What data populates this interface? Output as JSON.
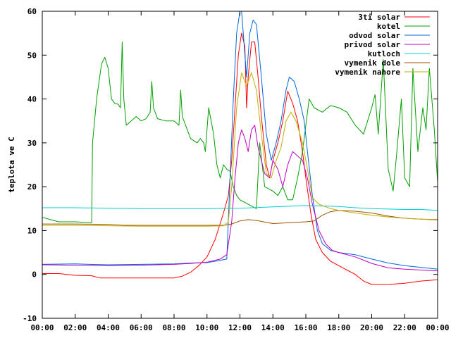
{
  "chart_data": {
    "type": "line",
    "title": "",
    "xlabel": "",
    "ylabel": "teplota ve C",
    "xlim": [
      0,
      24
    ],
    "ylim": [
      -10,
      60
    ],
    "x_ticks": [
      0,
      2,
      4,
      6,
      8,
      10,
      12,
      14,
      16,
      18,
      20,
      22,
      24
    ],
    "x_tick_labels": [
      "00:00",
      "02:00",
      "04:00",
      "06:00",
      "08:00",
      "10:00",
      "12:00",
      "14:00",
      "16:00",
      "18:00",
      "20:00",
      "22:00",
      "00:00"
    ],
    "y_ticks": [
      -10,
      0,
      10,
      20,
      30,
      40,
      50,
      60
    ],
    "y_tick_labels": [
      "-10",
      "0",
      "10",
      "20",
      "30",
      "40",
      "50",
      "60"
    ],
    "grid": false,
    "legend_position": "top-right",
    "series": [
      {
        "name": "3ti solar",
        "color": "#ff0000",
        "points": [
          [
            0,
            0.2
          ],
          [
            1,
            0.2
          ],
          [
            2,
            -0.2
          ],
          [
            3,
            -0.3
          ],
          [
            3.5,
            -0.8
          ],
          [
            5,
            -0.8
          ],
          [
            7,
            -0.8
          ],
          [
            8,
            -0.8
          ],
          [
            8.5,
            -0.4
          ],
          [
            9,
            0.5
          ],
          [
            9.5,
            2
          ],
          [
            10,
            4
          ],
          [
            10.5,
            8
          ],
          [
            11,
            14
          ],
          [
            11.3,
            18
          ],
          [
            11.5,
            26
          ],
          [
            11.7,
            38
          ],
          [
            11.9,
            50
          ],
          [
            12.1,
            55
          ],
          [
            12.3,
            52
          ],
          [
            12.4,
            38
          ],
          [
            12.5,
            45
          ],
          [
            12.7,
            53
          ],
          [
            12.9,
            53
          ],
          [
            13.1,
            45
          ],
          [
            13.3,
            36
          ],
          [
            13.6,
            25
          ],
          [
            13.8,
            22
          ],
          [
            14.0,
            26
          ],
          [
            14.3,
            30
          ],
          [
            14.6,
            35
          ],
          [
            14.9,
            41.8
          ],
          [
            15.2,
            39
          ],
          [
            15.5,
            35
          ],
          [
            15.8,
            28
          ],
          [
            16.0,
            22
          ],
          [
            16.3,
            14
          ],
          [
            16.6,
            8
          ],
          [
            17.0,
            5
          ],
          [
            17.5,
            3
          ],
          [
            18.0,
            2
          ],
          [
            18.5,
            1
          ],
          [
            19.0,
            0
          ],
          [
            19.5,
            -1.5
          ],
          [
            20.0,
            -2.3
          ],
          [
            21,
            -2.3
          ],
          [
            22,
            -2
          ],
          [
            23,
            -1.5
          ],
          [
            24,
            -1.2
          ]
        ]
      },
      {
        "name": "kotel",
        "color": "#00a000",
        "points": [
          [
            0,
            13
          ],
          [
            0.5,
            12.5
          ],
          [
            1,
            12
          ],
          [
            2,
            12
          ],
          [
            3,
            11.8
          ],
          [
            3.05,
            30
          ],
          [
            3.3,
            40
          ],
          [
            3.6,
            48
          ],
          [
            3.8,
            49.5
          ],
          [
            4.0,
            47
          ],
          [
            4.2,
            40
          ],
          [
            4.4,
            39
          ],
          [
            4.6,
            38.8
          ],
          [
            4.75,
            38
          ],
          [
            4.85,
            53
          ],
          [
            4.95,
            40
          ],
          [
            5.1,
            34
          ],
          [
            5.4,
            35
          ],
          [
            5.7,
            36
          ],
          [
            6.0,
            35
          ],
          [
            6.3,
            35.5
          ],
          [
            6.55,
            37
          ],
          [
            6.65,
            44
          ],
          [
            6.75,
            38
          ],
          [
            7.0,
            35.5
          ],
          [
            7.5,
            35
          ],
          [
            8.0,
            35
          ],
          [
            8.3,
            34
          ],
          [
            8.4,
            42
          ],
          [
            8.5,
            36
          ],
          [
            9.0,
            31
          ],
          [
            9.4,
            30
          ],
          [
            9.6,
            31
          ],
          [
            9.8,
            30
          ],
          [
            9.9,
            28
          ],
          [
            10.1,
            38
          ],
          [
            10.4,
            32
          ],
          [
            10.6,
            25
          ],
          [
            10.8,
            22
          ],
          [
            11.0,
            25
          ],
          [
            11.2,
            24
          ],
          [
            11.4,
            23.5
          ],
          [
            11.6,
            20
          ],
          [
            11.8,
            18
          ],
          [
            12.0,
            17
          ],
          [
            12.5,
            16
          ],
          [
            13.0,
            15
          ],
          [
            13.2,
            30
          ],
          [
            13.5,
            20
          ],
          [
            14.0,
            19
          ],
          [
            14.3,
            18
          ],
          [
            14.6,
            20
          ],
          [
            14.9,
            17
          ],
          [
            15.2,
            17
          ],
          [
            15.5,
            22
          ],
          [
            15.8,
            28
          ],
          [
            16.0,
            34
          ],
          [
            16.2,
            40
          ],
          [
            16.5,
            38
          ],
          [
            17.0,
            37
          ],
          [
            17.5,
            38.5
          ],
          [
            18,
            38
          ],
          [
            18.5,
            37
          ],
          [
            19,
            34
          ],
          [
            19.5,
            32
          ],
          [
            20,
            38
          ],
          [
            20.2,
            41
          ],
          [
            20.4,
            32
          ],
          [
            20.7,
            49
          ],
          [
            21.0,
            24
          ],
          [
            21.3,
            19
          ],
          [
            21.5,
            27
          ],
          [
            21.8,
            40
          ],
          [
            22.0,
            22
          ],
          [
            22.3,
            20
          ],
          [
            22.5,
            47
          ],
          [
            22.8,
            28
          ],
          [
            23.1,
            38
          ],
          [
            23.3,
            33
          ],
          [
            23.5,
            47
          ],
          [
            23.8,
            33
          ],
          [
            24,
            21
          ]
        ]
      },
      {
        "name": "odvod solar",
        "color": "#0066dd",
        "points": [
          [
            0,
            2.3
          ],
          [
            2,
            2.4
          ],
          [
            4,
            2.2
          ],
          [
            6,
            2.3
          ],
          [
            8,
            2.4
          ],
          [
            9,
            2.6
          ],
          [
            10,
            2.7
          ],
          [
            10.5,
            3
          ],
          [
            11.2,
            3.5
          ],
          [
            11.4,
            22
          ],
          [
            11.6,
            40
          ],
          [
            11.8,
            55
          ],
          [
            12.0,
            60
          ],
          [
            12.1,
            60
          ],
          [
            12.2,
            55
          ],
          [
            12.4,
            45
          ],
          [
            12.6,
            55
          ],
          [
            12.8,
            58
          ],
          [
            13.0,
            57
          ],
          [
            13.3,
            45
          ],
          [
            13.6,
            32
          ],
          [
            13.9,
            26
          ],
          [
            14.2,
            30
          ],
          [
            14.5,
            35
          ],
          [
            14.8,
            42
          ],
          [
            15.0,
            45
          ],
          [
            15.3,
            44
          ],
          [
            15.6,
            40
          ],
          [
            15.9,
            35
          ],
          [
            16.1,
            28
          ],
          [
            16.4,
            18
          ],
          [
            16.7,
            10
          ],
          [
            17.0,
            7
          ],
          [
            17.5,
            5.5
          ],
          [
            18,
            5
          ],
          [
            19,
            4.5
          ],
          [
            20,
            3.5
          ],
          [
            21,
            2.6
          ],
          [
            22,
            2
          ],
          [
            23,
            1.6
          ],
          [
            24,
            1.2
          ]
        ]
      },
      {
        "name": "privod solar",
        "color": "#c000c0",
        "points": [
          [
            0,
            2.2
          ],
          [
            2,
            2.1
          ],
          [
            4,
            2.0
          ],
          [
            6,
            2.1
          ],
          [
            8,
            2.3
          ],
          [
            9,
            2.5
          ],
          [
            10,
            2.8
          ],
          [
            10.8,
            3.5
          ],
          [
            11.2,
            4.5
          ],
          [
            11.5,
            12
          ],
          [
            11.7,
            22
          ],
          [
            11.9,
            30
          ],
          [
            12.1,
            33
          ],
          [
            12.3,
            31
          ],
          [
            12.5,
            28
          ],
          [
            12.7,
            33
          ],
          [
            12.9,
            34
          ],
          [
            13.1,
            29
          ],
          [
            13.5,
            23
          ],
          [
            13.8,
            22
          ],
          [
            14.0,
            26
          ],
          [
            14.3,
            24
          ],
          [
            14.6,
            20
          ],
          [
            14.9,
            25
          ],
          [
            15.2,
            28
          ],
          [
            15.5,
            27
          ],
          [
            15.8,
            26
          ],
          [
            16.1,
            22
          ],
          [
            16.4,
            16
          ],
          [
            16.8,
            10
          ],
          [
            17.2,
            7
          ],
          [
            17.6,
            5.5
          ],
          [
            18,
            5
          ],
          [
            19,
            4
          ],
          [
            20,
            2.5
          ],
          [
            21,
            1.5
          ],
          [
            22,
            1.2
          ],
          [
            23,
            1.0
          ],
          [
            24,
            0.8
          ]
        ]
      },
      {
        "name": "kutloch",
        "color": "#00d0d0",
        "points": [
          [
            0,
            15.2
          ],
          [
            2,
            15.2
          ],
          [
            4,
            15.1
          ],
          [
            6,
            15.0
          ],
          [
            8,
            15.0
          ],
          [
            10,
            15.0
          ],
          [
            12,
            15.1
          ],
          [
            14,
            15.4
          ],
          [
            16,
            15.7
          ],
          [
            17,
            15.6
          ],
          [
            18,
            15.5
          ],
          [
            19,
            15.2
          ],
          [
            20,
            15.0
          ],
          [
            21,
            14.9
          ],
          [
            22,
            14.8
          ],
          [
            23,
            14.8
          ],
          [
            24,
            14.6
          ]
        ]
      },
      {
        "name": "vymenik dole",
        "color": "#a05000",
        "points": [
          [
            0,
            11.5
          ],
          [
            2,
            11.5
          ],
          [
            4,
            11.4
          ],
          [
            5,
            11.2
          ],
          [
            6,
            11.2
          ],
          [
            8,
            11.2
          ],
          [
            10,
            11.2
          ],
          [
            11,
            11.2
          ],
          [
            11.5,
            11.5
          ],
          [
            12,
            12.2
          ],
          [
            12.5,
            12.5
          ],
          [
            13,
            12.3
          ],
          [
            14,
            11.6
          ],
          [
            15,
            11.8
          ],
          [
            16,
            12
          ],
          [
            16.5,
            12.2
          ],
          [
            17,
            13.5
          ],
          [
            17.5,
            14.3
          ],
          [
            18,
            14.6
          ],
          [
            19,
            14.4
          ],
          [
            20,
            14
          ],
          [
            21,
            13.3
          ],
          [
            22,
            12.8
          ],
          [
            23,
            12.6
          ],
          [
            24,
            12.5
          ]
        ]
      },
      {
        "name": "vymenik nahore",
        "color": "#c0b000",
        "points": [
          [
            0,
            11.2
          ],
          [
            2,
            11.2
          ],
          [
            4,
            11.1
          ],
          [
            6,
            11.0
          ],
          [
            8,
            11.0
          ],
          [
            10,
            11.0
          ],
          [
            11,
            11.1
          ],
          [
            11.3,
            12
          ],
          [
            11.5,
            20
          ],
          [
            11.8,
            38
          ],
          [
            12.1,
            46
          ],
          [
            12.4,
            43
          ],
          [
            12.7,
            46
          ],
          [
            13.0,
            42
          ],
          [
            13.3,
            32
          ],
          [
            13.6,
            23
          ],
          [
            13.9,
            22
          ],
          [
            14.2,
            26
          ],
          [
            14.5,
            29
          ],
          [
            14.8,
            35
          ],
          [
            15.1,
            37
          ],
          [
            15.4,
            35
          ],
          [
            15.8,
            30
          ],
          [
            16.1,
            24
          ],
          [
            16.4,
            17.5
          ],
          [
            16.8,
            16
          ],
          [
            17.5,
            15
          ],
          [
            18,
            14.6
          ],
          [
            19,
            14
          ],
          [
            20,
            13.5
          ],
          [
            21,
            13.1
          ],
          [
            22,
            12.8
          ],
          [
            23,
            12.6
          ],
          [
            24,
            12.4
          ]
        ]
      }
    ]
  }
}
